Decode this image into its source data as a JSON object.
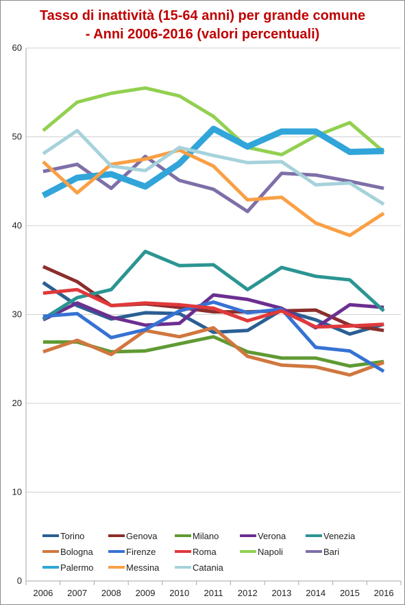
{
  "chart_data": {
    "type": "line",
    "title_line1": "Tasso di inattività (15-64 anni) per grande comune",
    "title_line2": "- Anni 2006-2016 (valori percentuali)",
    "xlabel": "",
    "ylabel": "",
    "x": [
      "2006",
      "2007",
      "2008",
      "2009",
      "2010",
      "2011",
      "2012",
      "2013",
      "2014",
      "2015",
      "2016"
    ],
    "ylim": [
      0,
      60
    ],
    "yticks": [
      0,
      10,
      20,
      30,
      40,
      50,
      60
    ],
    "grid": true,
    "legend_position": "bottom-inside",
    "series": [
      {
        "name": "Torino",
        "color": "#2a5f93",
        "values": [
          33.6,
          31.0,
          29.5,
          30.2,
          30.1,
          28.0,
          28.2,
          30.5,
          29.4,
          27.8,
          28.9
        ]
      },
      {
        "name": "Genova",
        "color": "#8b2e2c",
        "values": [
          35.4,
          33.7,
          31.0,
          31.2,
          30.8,
          30.3,
          30.3,
          30.4,
          30.5,
          28.8,
          28.2
        ]
      },
      {
        "name": "Milano",
        "color": "#5f9a33",
        "values": [
          26.9,
          26.9,
          25.8,
          25.9,
          26.7,
          27.5,
          25.8,
          25.1,
          25.1,
          24.2,
          24.7
        ]
      },
      {
        "name": "Verona",
        "color": "#6b2f90",
        "values": [
          29.4,
          31.3,
          29.7,
          28.8,
          29.0,
          32.2,
          31.7,
          30.7,
          28.5,
          31.1,
          30.8
        ]
      },
      {
        "name": "Venezia",
        "color": "#2b9592",
        "values": [
          29.5,
          31.9,
          32.8,
          37.1,
          35.5,
          35.6,
          32.8,
          35.3,
          34.3,
          33.9,
          30.4
        ]
      },
      {
        "name": "Bologna",
        "color": "#d0773f",
        "values": [
          25.8,
          27.1,
          25.5,
          28.2,
          27.5,
          28.5,
          25.3,
          24.3,
          24.1,
          23.2,
          24.6
        ]
      },
      {
        "name": "Firenze",
        "color": "#3672d4",
        "values": [
          29.8,
          30.1,
          27.4,
          28.3,
          30.4,
          31.4,
          30.2,
          30.6,
          26.3,
          25.9,
          23.6
        ]
      },
      {
        "name": "Roma",
        "color": "#e0393b",
        "values": [
          32.4,
          32.8,
          31.0,
          31.3,
          31.1,
          30.7,
          29.3,
          30.4,
          28.6,
          28.7,
          28.9
        ]
      },
      {
        "name": "Napoli",
        "color": "#92d050",
        "values": [
          50.7,
          53.9,
          54.9,
          55.5,
          54.6,
          52.3,
          48.8,
          48.0,
          50.1,
          51.6,
          48.3
        ]
      },
      {
        "name": "Bari",
        "color": "#7e6fa8",
        "values": [
          46.1,
          46.9,
          44.2,
          47.8,
          45.1,
          44.1,
          41.6,
          45.9,
          45.7,
          45.0,
          44.2
        ]
      },
      {
        "name": "Palermo",
        "color": "#31a5d9",
        "values": [
          43.4,
          45.4,
          45.8,
          44.4,
          47.0,
          50.9,
          48.9,
          50.6,
          50.6,
          48.3,
          48.4
        ]
      },
      {
        "name": "Messina",
        "color": "#f9a045",
        "values": [
          47.2,
          43.7,
          46.9,
          47.5,
          48.5,
          46.7,
          42.9,
          43.2,
          40.3,
          38.9,
          41.4
        ]
      },
      {
        "name": "Catania",
        "color": "#a6d2db",
        "values": [
          48.1,
          50.7,
          46.7,
          46.2,
          48.8,
          47.9,
          47.1,
          47.2,
          44.6,
          44.8,
          42.4
        ]
      }
    ]
  }
}
